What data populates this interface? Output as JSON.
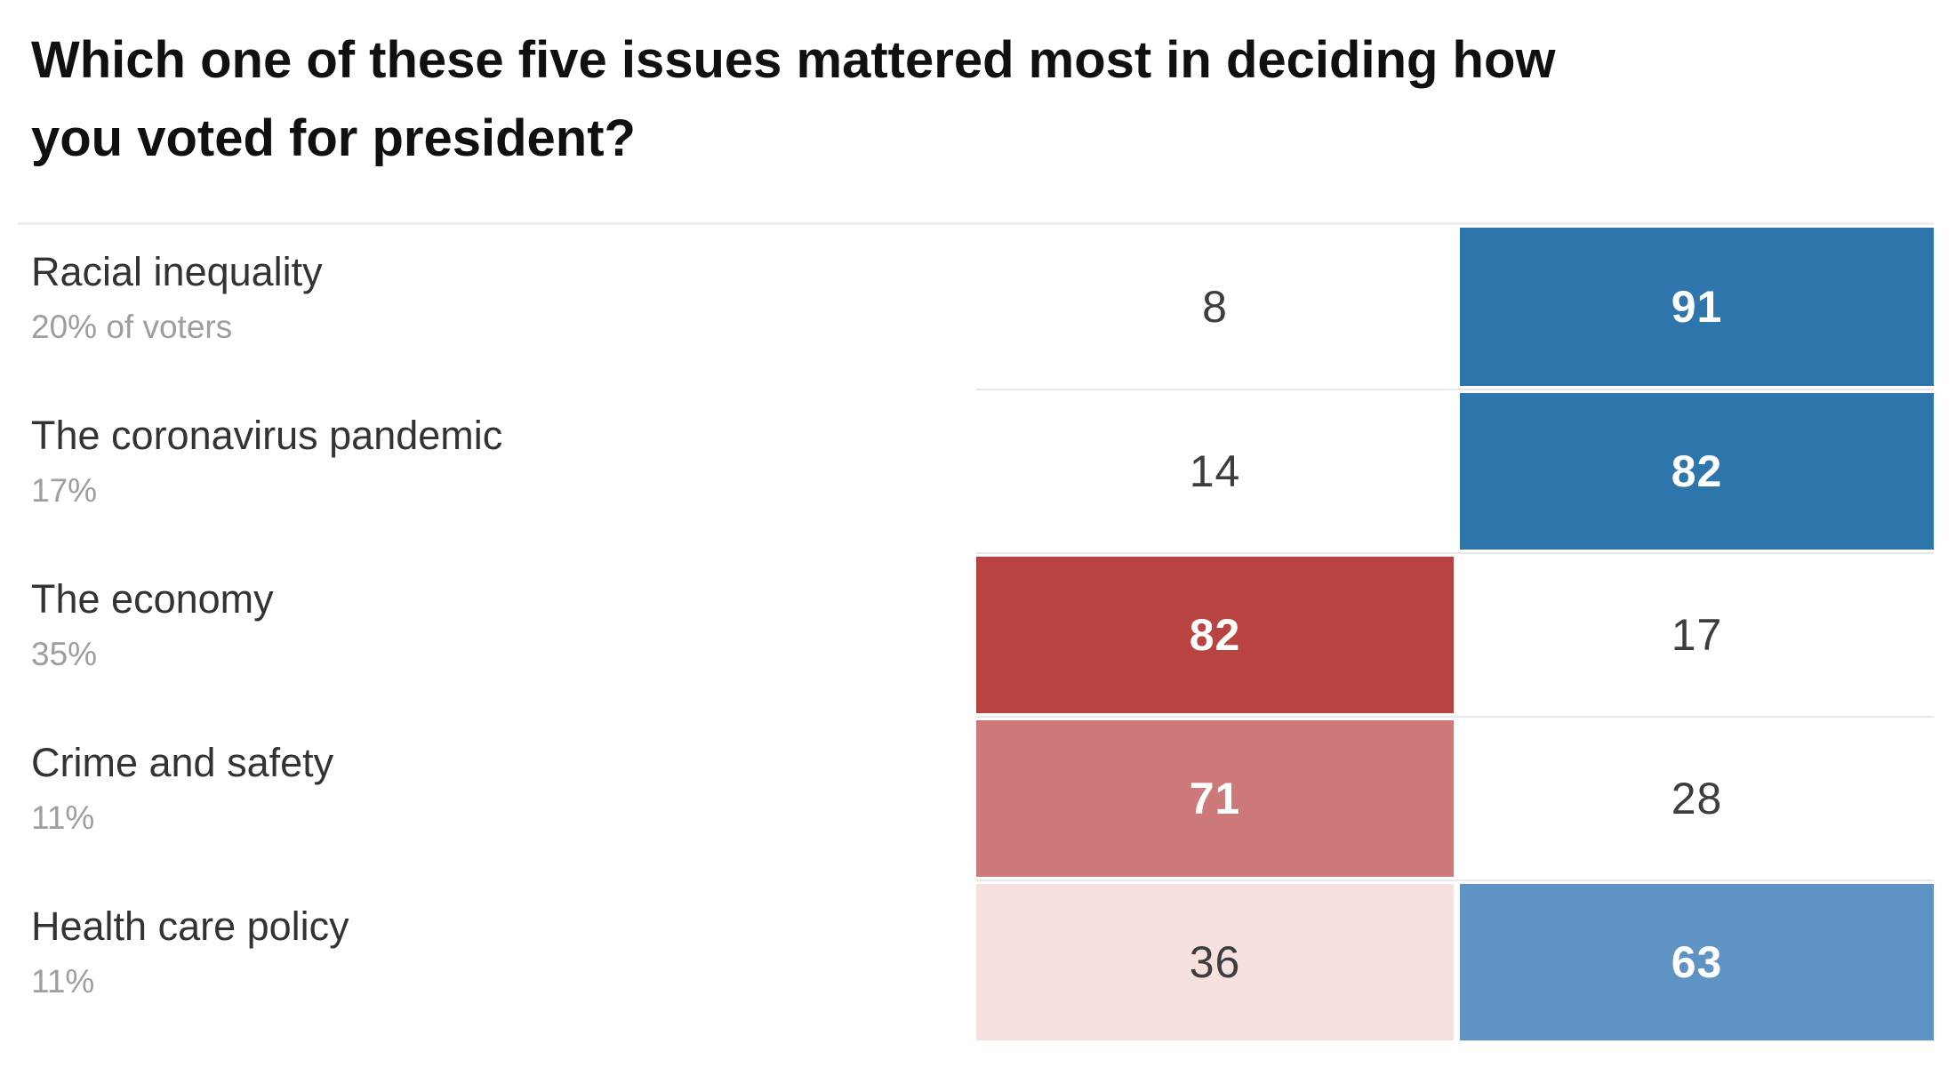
{
  "header": {
    "title_line1": "Which one of these five issues mattered most in deciding how",
    "title_line2": "you voted for president?"
  },
  "palette": {
    "red_strong": "#b94341",
    "red_mid": "#cd7879",
    "red_pale": "#f7e1df",
    "blue_strong": "#2e75ab",
    "blue_mid": "#5e93c4",
    "rule_gray": "#e8e8e8",
    "divider_gray": "#ededed",
    "label_dark": "#333333",
    "share_gray": "#9e9e9e",
    "number_dark": "#3d3d3d",
    "number_light": "#ffffff"
  },
  "rows": [
    {
      "label": "Racial inequality",
      "share": "20% of voters",
      "left": {
        "value": "8",
        "tone": "none",
        "text": "dark"
      },
      "right": {
        "value": "91",
        "tone": "blue_strong",
        "text": "light"
      }
    },
    {
      "label": "The coronavirus pandemic",
      "share": "17%",
      "left": {
        "value": "14",
        "tone": "none",
        "text": "dark"
      },
      "right": {
        "value": "82",
        "tone": "blue_strong",
        "text": "light"
      }
    },
    {
      "label": "The economy",
      "share": "35%",
      "left": {
        "value": "82",
        "tone": "red_strong",
        "text": "light"
      },
      "right": {
        "value": "17",
        "tone": "none",
        "text": "dark"
      }
    },
    {
      "label": "Crime and safety",
      "share": "11%",
      "left": {
        "value": "71",
        "tone": "red_mid",
        "text": "light"
      },
      "right": {
        "value": "28",
        "tone": "none",
        "text": "dark"
      }
    },
    {
      "label": "Health care policy",
      "share": "11%",
      "left": {
        "value": "36",
        "tone": "red_pale",
        "text": "dark"
      },
      "right": {
        "value": "63",
        "tone": "blue_mid",
        "text": "light"
      }
    }
  ],
  "chart_data": {
    "type": "table",
    "title": "Which one of these five issues mattered most in deciding how you voted for president?",
    "categories": [
      "Racial inequality",
      "The coronavirus pandemic",
      "The economy",
      "Crime and safety",
      "Health care policy"
    ],
    "category_shares_of_voters": [
      "20% of voters",
      "17%",
      "35%",
      "11%",
      "11%"
    ],
    "series": [
      {
        "name": "left column (red-shaded)",
        "values": [
          8,
          14,
          82,
          71,
          36
        ]
      },
      {
        "name": "right column (blue-shaded)",
        "values": [
          91,
          82,
          17,
          28,
          63
        ]
      }
    ],
    "value_range": [
      0,
      100
    ],
    "layout": "heatmap-style table, cells shaded by value intensity; red scale in left value column, blue scale in right value column"
  }
}
